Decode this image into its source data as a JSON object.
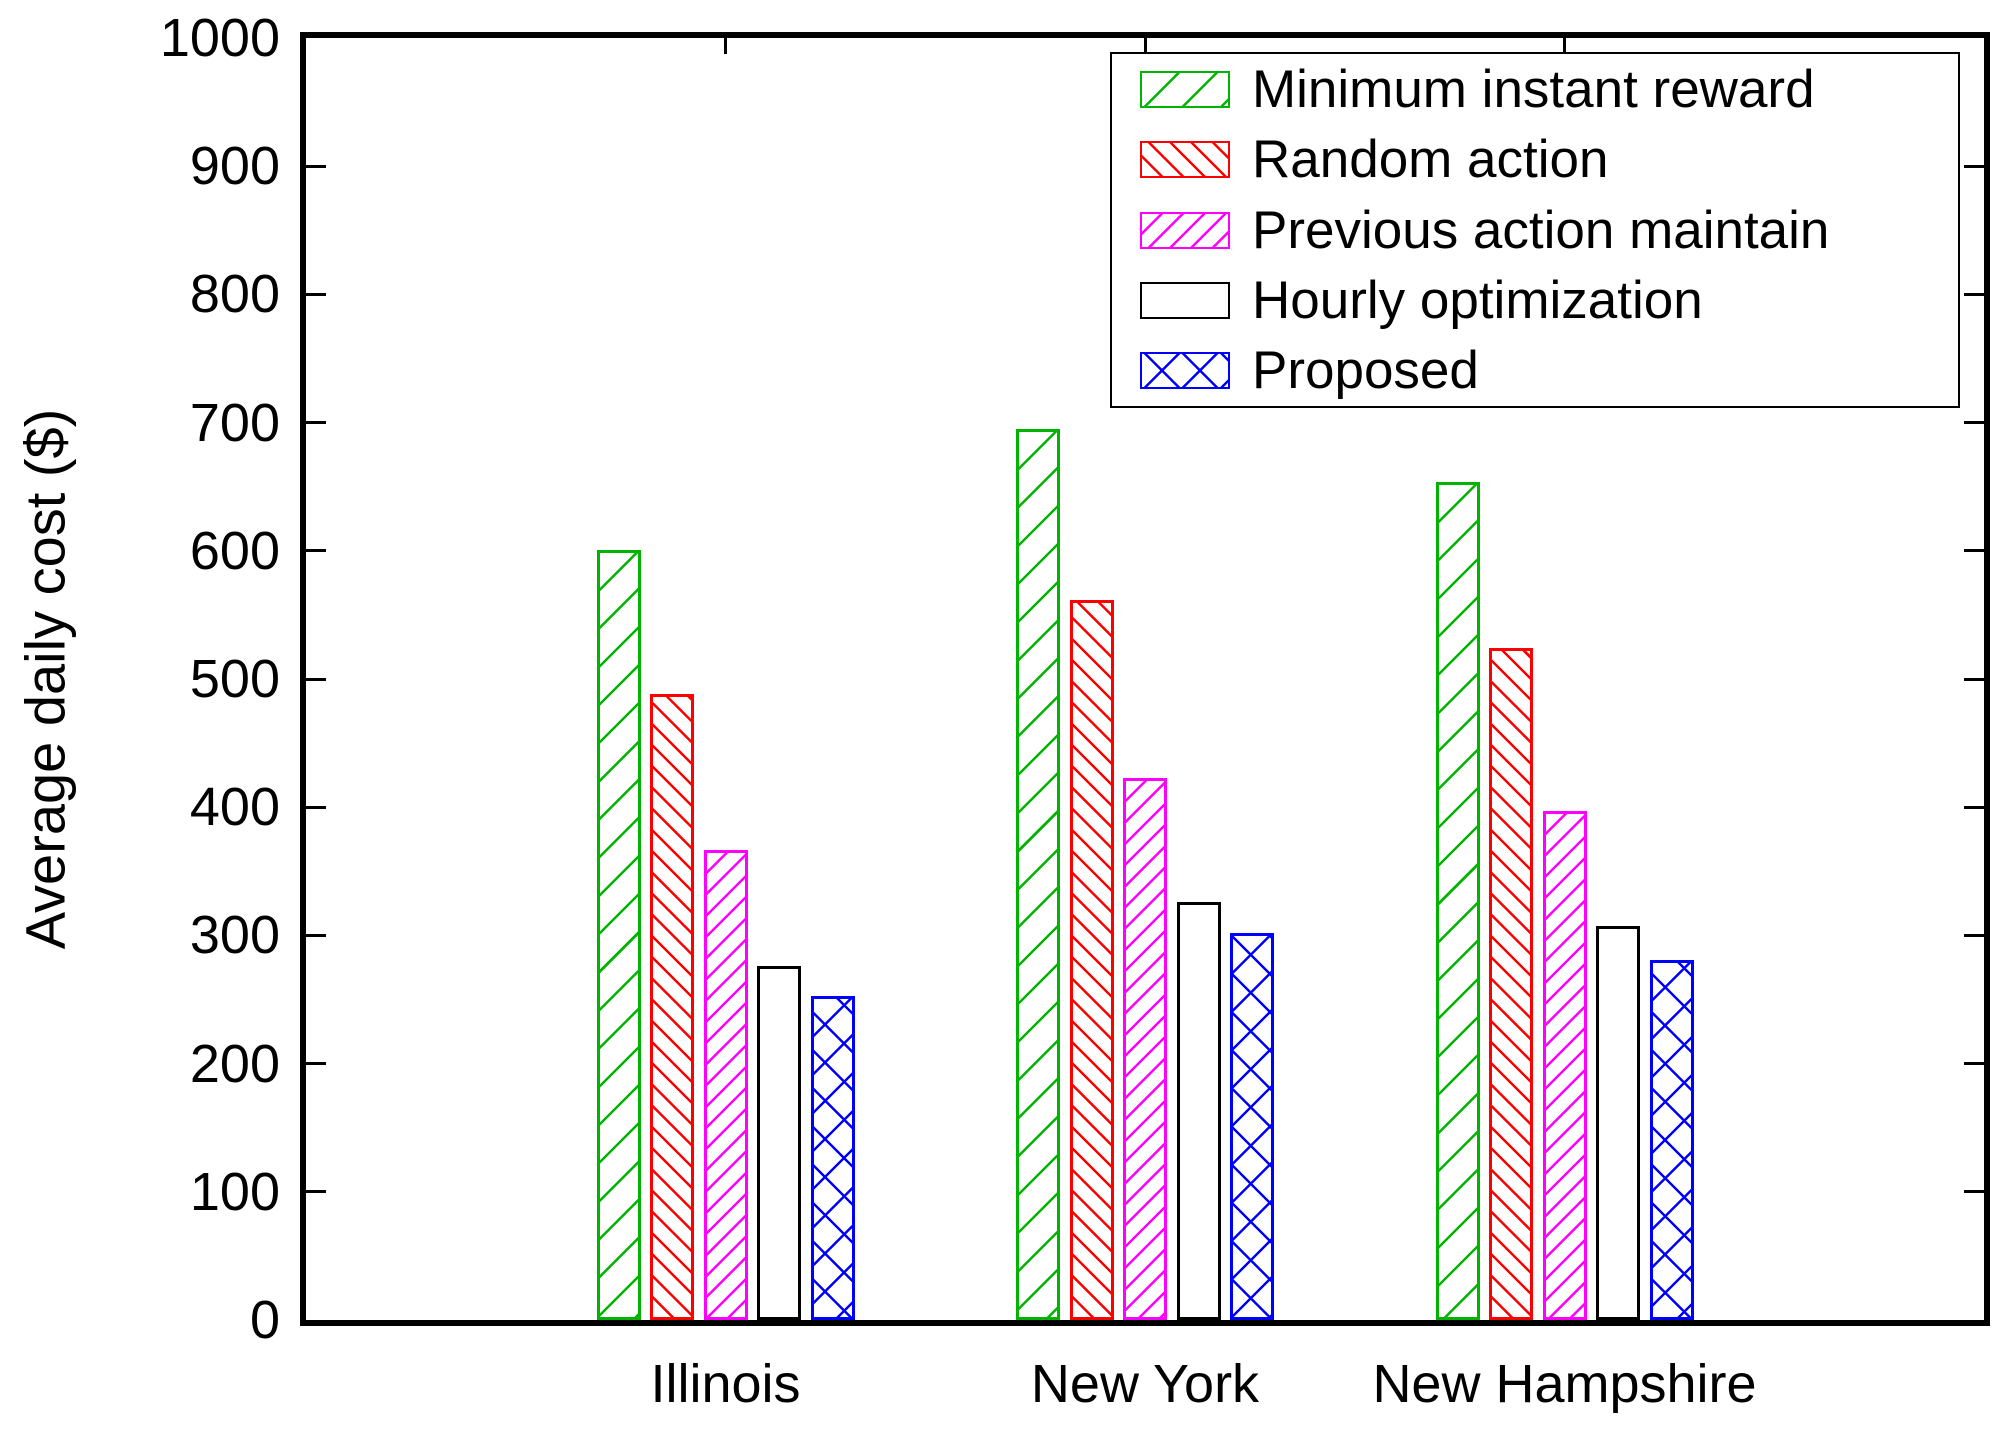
{
  "figure": {
    "background": "#ffffff"
  },
  "chart_data": {
    "type": "bar",
    "title": "",
    "categories": [
      "Illinois",
      "New York",
      "New Hampshire"
    ],
    "series": [
      {
        "name": "Minimum instant reward",
        "color": "#00b400",
        "hatch": "/",
        "density": "sparse",
        "values": [
          601,
          695,
          654
        ]
      },
      {
        "name": "Random action",
        "color": "#ff0000",
        "hatch": "\\",
        "density": "dense",
        "values": [
          488,
          562,
          524
        ]
      },
      {
        "name": "Previous action maintain",
        "color": "#ff00ff",
        "hatch": "/",
        "density": "dense",
        "values": [
          367,
          423,
          397
        ]
      },
      {
        "name": "Hourly optimization",
        "color": "#000000",
        "hatch": "none",
        "density": "none",
        "values": [
          276,
          326,
          307
        ]
      },
      {
        "name": "Proposed",
        "color": "#0000ff",
        "hatch": "x",
        "density": "sparse",
        "values": [
          253,
          302,
          281
        ]
      }
    ],
    "xlabel": "",
    "ylabel": "Average daily cost ($)",
    "ylim": [
      0,
      1000
    ],
    "ytick_step": 100,
    "yticks": [
      0,
      100,
      200,
      300,
      400,
      500,
      600,
      700,
      800,
      900,
      1000
    ],
    "grid": "horizontal-dashed",
    "legend_position": "top-right",
    "axis_color": "#000000",
    "grid_color": "#000000"
  }
}
